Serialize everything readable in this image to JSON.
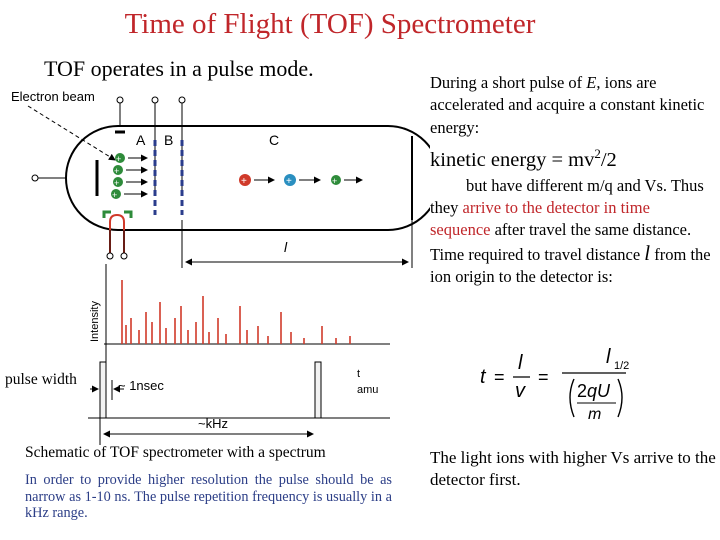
{
  "title": "Time of Flight (TOF) Spectrometer",
  "subtitle": "TOF operates in a pulse mode.",
  "diagram": {
    "electron_beam_label": "Electron beam",
    "label_A": "A",
    "label_B": "B",
    "label_C": "C",
    "label_l": "l",
    "intensity_label": "Intensity",
    "t_label": "t",
    "amu_label": "amu",
    "pulse_width_label": "pulse width",
    "nsec_label": "~ 1nsec",
    "khz_label": "~kHz"
  },
  "caption": "Schematic of TOF spectrometer with a spectrum",
  "note": "In order to provide higher resolution the pulse should be as narrow as 1-10 ns. The pulse repetition frequency is usually in a kHz range.",
  "right": {
    "p1a": "During a short pulse of ",
    "p1_E": "E",
    "p1b": ", ions are accelerated and acquire a constant kinetic energy:",
    "ke": "kinetic energy = mv",
    "ke_sup": "2",
    "ke_tail": "/2",
    "p2a": "but have different m/q and Vs. Thus they ",
    "p2_red": "arrive to the detector in time sequence",
    "p2b": " after travel the same distance. Time required to travel distance ",
    "p2_l": "l",
    "p2c": " from the ion origin to the detector is:",
    "light": "The light ions with higher Vs arrive to the detector first."
  },
  "formula": {
    "t": "t",
    "eq": "=",
    "l": "l",
    "v": "v",
    "m": "m",
    "two": "2",
    "qU": "qU",
    "exp": "1/2"
  },
  "colors": {
    "title": "#c0262a",
    "highlight": "#c0262a",
    "note": "#2c3e87",
    "ion_positive": "#2e8b3a",
    "ion_heavy": "#d03a2a",
    "ion_light": "#2a8fc0",
    "grid_b": "#2b3d8c"
  }
}
